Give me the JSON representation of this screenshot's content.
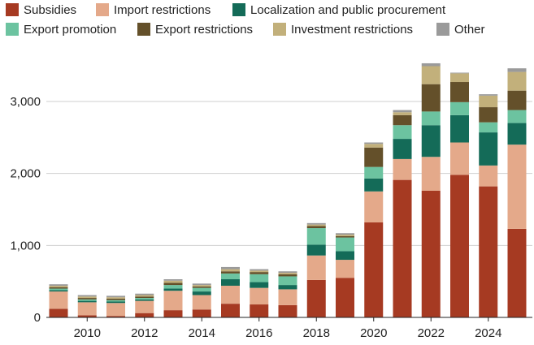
{
  "chart_data": {
    "type": "bar",
    "stacked": true,
    "title": "",
    "xlabel": "",
    "ylabel": "",
    "ylim": [
      0,
      3600
    ],
    "yticks": [
      0,
      1000,
      2000,
      3000
    ],
    "ytick_labels": [
      "0",
      "1,000",
      "2,000",
      "3,000"
    ],
    "categories": [
      "2009",
      "2010",
      "2011",
      "2012",
      "2013",
      "2014",
      "2015",
      "2016",
      "2017",
      "2018",
      "2019",
      "2020",
      "2021",
      "2022",
      "2023",
      "2024",
      "2025"
    ],
    "xtick_labels": [
      "2010",
      "2012",
      "2014",
      "2016",
      "2018",
      "2020",
      "2022",
      "2024"
    ],
    "legend_position": "top-left",
    "grid": true,
    "series": [
      {
        "name": "Subsidies",
        "color": "#a63a22",
        "values": [
          120,
          30,
          20,
          60,
          100,
          110,
          190,
          180,
          170,
          520,
          550,
          1320,
          1910,
          1760,
          1980,
          1820,
          1230
        ]
      },
      {
        "name": "Import restrictions",
        "color": "#e4a98a",
        "values": [
          240,
          180,
          180,
          170,
          270,
          200,
          250,
          230,
          220,
          340,
          250,
          430,
          290,
          470,
          450,
          290,
          1170
        ]
      },
      {
        "name": "Localization and public procurement",
        "color": "#146b58",
        "values": [
          20,
          20,
          20,
          20,
          30,
          50,
          90,
          80,
          60,
          150,
          120,
          180,
          280,
          440,
          380,
          460,
          300
        ]
      },
      {
        "name": "Export promotion",
        "color": "#6cc3a0",
        "values": [
          20,
          20,
          20,
          20,
          50,
          50,
          80,
          110,
          120,
          230,
          190,
          160,
          190,
          190,
          180,
          140,
          180
        ]
      },
      {
        "name": "Export restrictions",
        "color": "#64502a",
        "values": [
          20,
          20,
          20,
          20,
          30,
          20,
          30,
          30,
          30,
          30,
          20,
          270,
          140,
          380,
          280,
          210,
          270
        ]
      },
      {
        "name": "Investment restrictions",
        "color": "#c2b07b",
        "values": [
          20,
          20,
          20,
          20,
          30,
          20,
          30,
          20,
          20,
          20,
          20,
          50,
          40,
          250,
          120,
          160,
          260
        ]
      },
      {
        "name": "Other",
        "color": "#9a9a9a",
        "values": [
          20,
          20,
          20,
          20,
          20,
          20,
          30,
          20,
          20,
          20,
          20,
          20,
          30,
          40,
          10,
          20,
          50
        ]
      }
    ]
  },
  "colors": {
    "axis": "#222222",
    "grid": "#cfcfcf",
    "text": "#222222"
  }
}
